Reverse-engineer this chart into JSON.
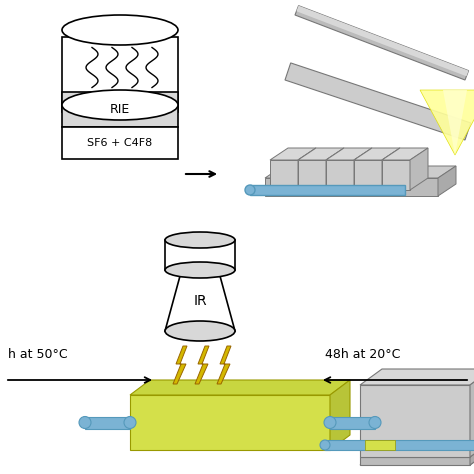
{
  "background_color": "#ffffff",
  "rie_label": "RIE",
  "gas_label": "SF6 + C4F8",
  "ir_label": "IR",
  "text_50c": "h at 50°C",
  "text_48h": "48h at 20°C",
  "yellow_color": "#d4e04a",
  "yellow_top": "#c8d640",
  "yellow_side": "#b8c438",
  "blue_color": "#7bb3d4",
  "gray1": "#aaaaaa",
  "gray2": "#bbbbbb",
  "gray3": "#cccccc",
  "gray4": "#d8d8d8",
  "gray5": "#999999",
  "gray_dark": "#777777",
  "white": "#ffffff",
  "black": "#000000"
}
